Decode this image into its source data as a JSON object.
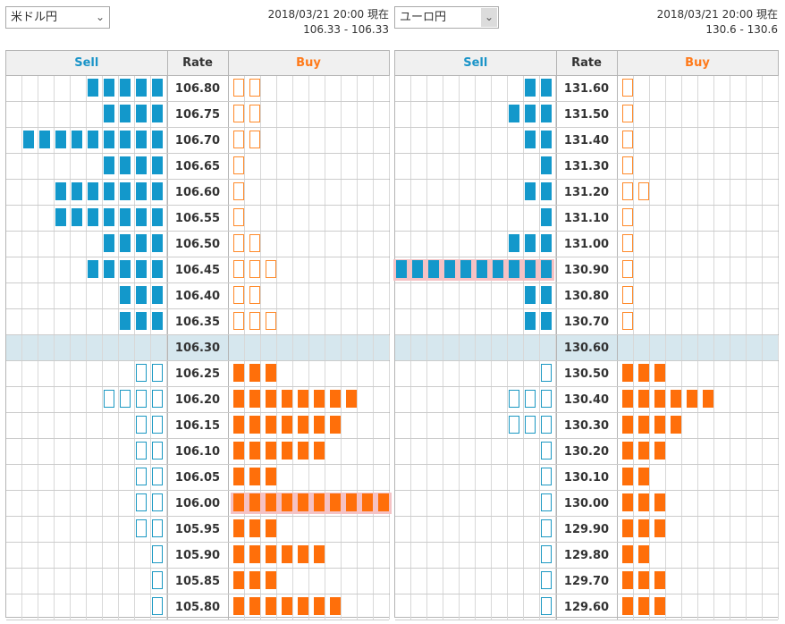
{
  "left": {
    "selector": "米ドル円",
    "updated": "2018/03/21 20:00 現在",
    "range": "106.33 - 106.33",
    "headers": {
      "sell": "Sell",
      "rate": "Rate",
      "buy": "Buy"
    },
    "current": "106.30",
    "rows": [
      {
        "rate": "106.80",
        "sell": 5,
        "sellType": "filled",
        "buy": 2,
        "buyType": "outline"
      },
      {
        "rate": "106.75",
        "sell": 4,
        "sellType": "filled",
        "buy": 2,
        "buyType": "outline"
      },
      {
        "rate": "106.70",
        "sell": 9,
        "sellType": "filled",
        "buy": 2,
        "buyType": "outline"
      },
      {
        "rate": "106.65",
        "sell": 4,
        "sellType": "filled",
        "buy": 1,
        "buyType": "outline"
      },
      {
        "rate": "106.60",
        "sell": 7,
        "sellType": "filled",
        "buy": 1,
        "buyType": "outline"
      },
      {
        "rate": "106.55",
        "sell": 7,
        "sellType": "filled",
        "buy": 1,
        "buyType": "outline"
      },
      {
        "rate": "106.50",
        "sell": 4,
        "sellType": "filled",
        "buy": 2,
        "buyType": "outline"
      },
      {
        "rate": "106.45",
        "sell": 5,
        "sellType": "filled",
        "buy": 3,
        "buyType": "outline"
      },
      {
        "rate": "106.40",
        "sell": 3,
        "sellType": "filled",
        "buy": 2,
        "buyType": "outline"
      },
      {
        "rate": "106.35",
        "sell": 3,
        "sellType": "filled",
        "buy": 3,
        "buyType": "outline"
      },
      {
        "rate": "106.30",
        "sell": 0,
        "sellType": "filled",
        "buy": 0,
        "buyType": "filled"
      },
      {
        "rate": "106.25",
        "sell": 2,
        "sellType": "outline",
        "buy": 3,
        "buyType": "filled"
      },
      {
        "rate": "106.20",
        "sell": 4,
        "sellType": "outline",
        "buy": 8,
        "buyType": "filled"
      },
      {
        "rate": "106.15",
        "sell": 2,
        "sellType": "outline",
        "buy": 7,
        "buyType": "filled"
      },
      {
        "rate": "106.10",
        "sell": 2,
        "sellType": "outline",
        "buy": 6,
        "buyType": "filled"
      },
      {
        "rate": "106.05",
        "sell": 2,
        "sellType": "outline",
        "buy": 3,
        "buyType": "filled"
      },
      {
        "rate": "106.00",
        "sell": 2,
        "sellType": "outline",
        "buy": 10,
        "buyType": "filled",
        "highlight": "buy"
      },
      {
        "rate": "105.95",
        "sell": 2,
        "sellType": "outline",
        "buy": 3,
        "buyType": "filled"
      },
      {
        "rate": "105.90",
        "sell": 1,
        "sellType": "outline",
        "buy": 6,
        "buyType": "filled"
      },
      {
        "rate": "105.85",
        "sell": 1,
        "sellType": "outline",
        "buy": 3,
        "buyType": "filled"
      },
      {
        "rate": "105.80",
        "sell": 1,
        "sellType": "outline",
        "buy": 7,
        "buyType": "filled"
      }
    ]
  },
  "right": {
    "selector": "ユーロ円",
    "updated": "2018/03/21 20:00 現在",
    "range": "130.6 - 130.6",
    "headers": {
      "sell": "Sell",
      "rate": "Rate",
      "buy": "Buy"
    },
    "current": "130.60",
    "rows": [
      {
        "rate": "131.60",
        "sell": 2,
        "sellType": "filled",
        "buy": 1,
        "buyType": "outline"
      },
      {
        "rate": "131.50",
        "sell": 3,
        "sellType": "filled",
        "buy": 1,
        "buyType": "outline"
      },
      {
        "rate": "131.40",
        "sell": 2,
        "sellType": "filled",
        "buy": 1,
        "buyType": "outline"
      },
      {
        "rate": "131.30",
        "sell": 1,
        "sellType": "filled",
        "buy": 1,
        "buyType": "outline"
      },
      {
        "rate": "131.20",
        "sell": 2,
        "sellType": "filled",
        "buy": 2,
        "buyType": "outline"
      },
      {
        "rate": "131.10",
        "sell": 1,
        "sellType": "filled",
        "buy": 1,
        "buyType": "outline"
      },
      {
        "rate": "131.00",
        "sell": 3,
        "sellType": "filled",
        "buy": 1,
        "buyType": "outline"
      },
      {
        "rate": "130.90",
        "sell": 10,
        "sellType": "filled",
        "buy": 1,
        "buyType": "outline",
        "highlight": "sell"
      },
      {
        "rate": "130.80",
        "sell": 2,
        "sellType": "filled",
        "buy": 1,
        "buyType": "outline"
      },
      {
        "rate": "130.70",
        "sell": 2,
        "sellType": "filled",
        "buy": 1,
        "buyType": "outline"
      },
      {
        "rate": "130.60",
        "sell": 0,
        "sellType": "filled",
        "buy": 0,
        "buyType": "filled"
      },
      {
        "rate": "130.50",
        "sell": 1,
        "sellType": "outline",
        "buy": 3,
        "buyType": "filled"
      },
      {
        "rate": "130.40",
        "sell": 3,
        "sellType": "outline",
        "buy": 6,
        "buyType": "filled"
      },
      {
        "rate": "130.30",
        "sell": 3,
        "sellType": "outline",
        "buy": 4,
        "buyType": "filled"
      },
      {
        "rate": "130.20",
        "sell": 1,
        "sellType": "outline",
        "buy": 3,
        "buyType": "filled"
      },
      {
        "rate": "130.10",
        "sell": 1,
        "sellType": "outline",
        "buy": 2,
        "buyType": "filled"
      },
      {
        "rate": "130.00",
        "sell": 1,
        "sellType": "outline",
        "buy": 3,
        "buyType": "filled"
      },
      {
        "rate": "129.90",
        "sell": 1,
        "sellType": "outline",
        "buy": 3,
        "buyType": "filled"
      },
      {
        "rate": "129.80",
        "sell": 1,
        "sellType": "outline",
        "buy": 2,
        "buyType": "filled"
      },
      {
        "rate": "129.70",
        "sell": 1,
        "sellType": "outline",
        "buy": 3,
        "buyType": "filled"
      },
      {
        "rate": "129.60",
        "sell": 1,
        "sellType": "outline",
        "buy": 3,
        "buyType": "filled"
      }
    ]
  },
  "colors": {
    "sell": "#1398cb",
    "buy": "#ff6f0a",
    "currentRow": "#d6e7ee",
    "highlight": "#f5c2c4"
  },
  "icons": {
    "dropdown": "chevron-down-icon"
  }
}
